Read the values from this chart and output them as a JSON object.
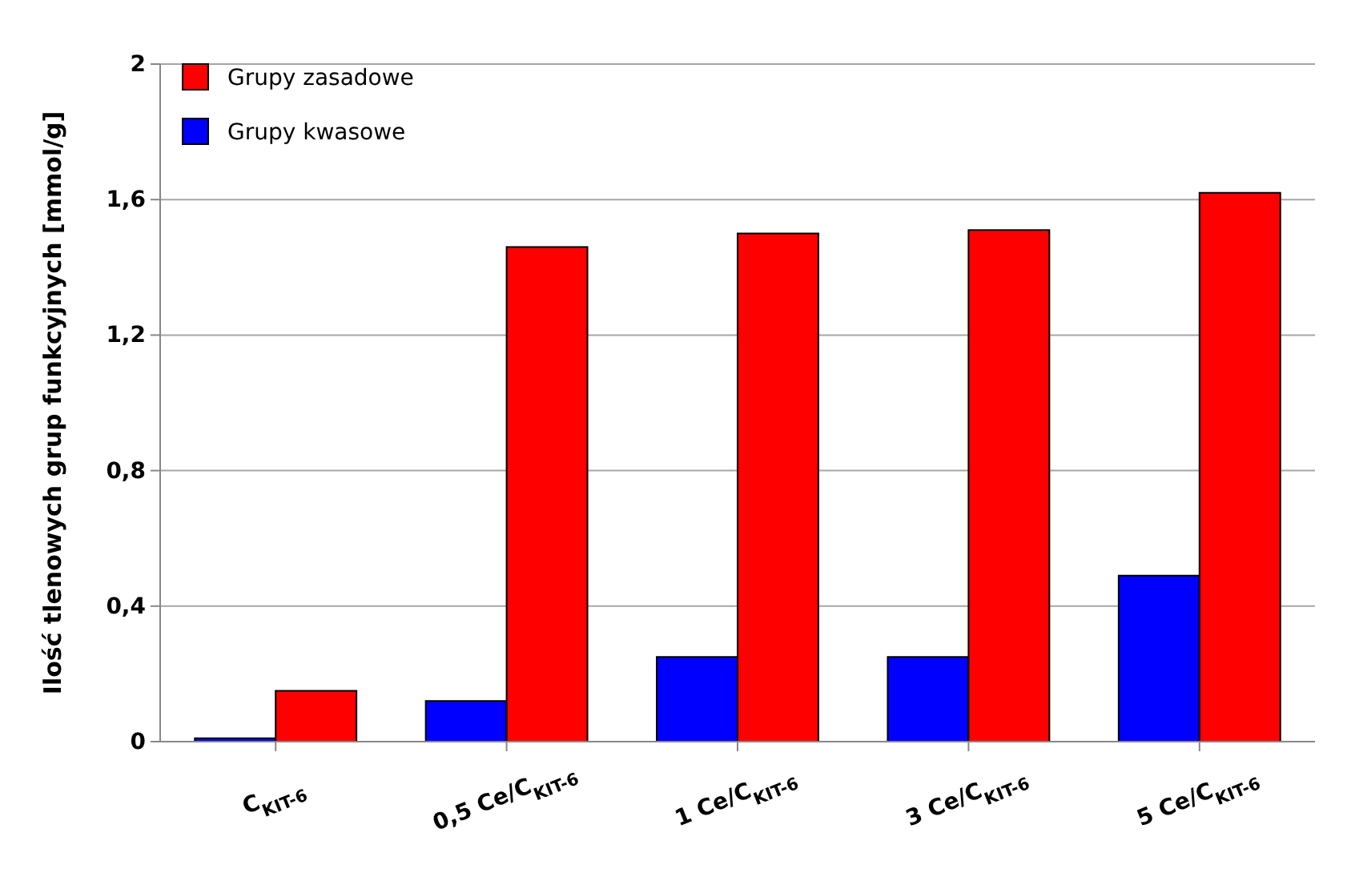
{
  "chart_data": {
    "type": "bar",
    "ylabel": "Ilość tlenowych grup funkcyjnych [mmol/g]",
    "categories": [
      "C$_{KIT-6}$",
      "0,5 Ce/C$_{KIT-6}$",
      "1 Ce/C$_{KIT-6}$",
      "3 Ce/C$_{KIT-6}$",
      "5 Ce/C$_{KIT-6}$"
    ],
    "series": [
      {
        "name": "Grupy kwasowe",
        "color": "#0000ff",
        "values": [
          0.01,
          0.12,
          0.25,
          0.25,
          0.49
        ]
      },
      {
        "name": "Grupy zasadowe",
        "color": "#ff0000",
        "values": [
          0.15,
          1.46,
          1.5,
          1.51,
          1.62
        ]
      }
    ],
    "ylim": [
      0,
      2
    ],
    "yticks": [
      0,
      {
        "value": 0.4,
        "label": "0,4"
      },
      {
        "value": 0.8,
        "label": "0,8"
      },
      {
        "value": 1.2,
        "label": "1,2"
      },
      {
        "value": 1.6,
        "label": "1,6"
      },
      2
    ],
    "grid": "y",
    "legend": "top left"
  }
}
